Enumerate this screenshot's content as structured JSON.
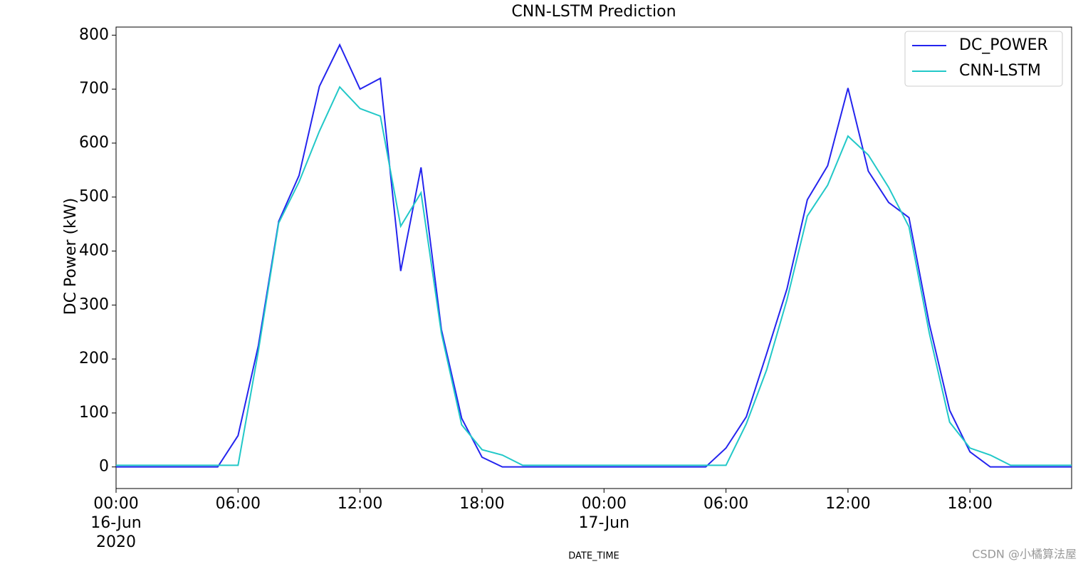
{
  "chart_data": {
    "type": "line",
    "title": "CNN-LSTM Prediction",
    "y_label": "DC Power (kW)",
    "x_label": "DATE_TIME",
    "x": [
      "2020-06-16 00:00",
      "2020-06-16 01:00",
      "2020-06-16 02:00",
      "2020-06-16 03:00",
      "2020-06-16 04:00",
      "2020-06-16 05:00",
      "2020-06-16 06:00",
      "2020-06-16 07:00",
      "2020-06-16 08:00",
      "2020-06-16 09:00",
      "2020-06-16 10:00",
      "2020-06-16 11:00",
      "2020-06-16 12:00",
      "2020-06-16 13:00",
      "2020-06-16 14:00",
      "2020-06-16 15:00",
      "2020-06-16 16:00",
      "2020-06-16 17:00",
      "2020-06-16 18:00",
      "2020-06-16 19:00",
      "2020-06-16 20:00",
      "2020-06-16 21:00",
      "2020-06-16 22:00",
      "2020-06-16 23:00",
      "2020-06-17 00:00",
      "2020-06-17 01:00",
      "2020-06-17 02:00",
      "2020-06-17 03:00",
      "2020-06-17 04:00",
      "2020-06-17 05:00",
      "2020-06-17 06:00",
      "2020-06-17 07:00",
      "2020-06-17 08:00",
      "2020-06-17 09:00",
      "2020-06-17 10:00",
      "2020-06-17 11:00",
      "2020-06-17 12:00",
      "2020-06-17 13:00",
      "2020-06-17 14:00",
      "2020-06-17 15:00",
      "2020-06-17 16:00",
      "2020-06-17 17:00",
      "2020-06-17 18:00",
      "2020-06-17 19:00",
      "2020-06-17 20:00",
      "2020-06-17 21:00",
      "2020-06-17 22:00",
      "2020-06-17 23:00"
    ],
    "series": [
      {
        "name": "DC_POWER",
        "color": "#2424ee",
        "values": [
          0,
          0,
          0,
          0,
          0,
          0,
          58,
          225,
          455,
          540,
          705,
          782,
          700,
          720,
          363,
          555,
          255,
          90,
          18,
          0,
          0,
          0,
          0,
          0,
          0,
          0,
          0,
          0,
          0,
          0,
          35,
          93,
          210,
          330,
          495,
          558,
          702,
          548,
          490,
          462,
          265,
          105,
          28,
          0,
          0,
          0,
          0,
          0
        ]
      },
      {
        "name": "CNN-LSTM",
        "color": "#22c8c8",
        "values": [
          3,
          3,
          3,
          3,
          3,
          3,
          3,
          215,
          452,
          528,
          622,
          704,
          664,
          650,
          446,
          508,
          248,
          78,
          32,
          22,
          3,
          3,
          3,
          3,
          3,
          3,
          3,
          3,
          3,
          3,
          3,
          80,
          180,
          310,
          465,
          522,
          613,
          578,
          518,
          445,
          248,
          83,
          35,
          22,
          3,
          3,
          3,
          3
        ]
      }
    ],
    "xlim": [
      "2020-06-16 00:00",
      "2020-06-17 23:00"
    ],
    "xticks": [
      {
        "value": "2020-06-16 00:00",
        "label": "00:00\n16-Jun\n2020"
      },
      {
        "value": "2020-06-16 06:00",
        "label": "06:00"
      },
      {
        "value": "2020-06-16 12:00",
        "label": "12:00"
      },
      {
        "value": "2020-06-16 18:00",
        "label": "18:00"
      },
      {
        "value": "2020-06-17 00:00",
        "label": "00:00\n17-Jun"
      },
      {
        "value": "2020-06-17 06:00",
        "label": "06:00"
      },
      {
        "value": "2020-06-17 12:00",
        "label": "12:00"
      },
      {
        "value": "2020-06-17 18:00",
        "label": "18:00"
      }
    ],
    "ylim": [
      -40,
      815
    ],
    "yticks": [
      0,
      100,
      200,
      300,
      400,
      500,
      600,
      700,
      800
    ],
    "grid": false,
    "legend": "upper right",
    "watermark": "CSDN @小橘算法屋"
  }
}
